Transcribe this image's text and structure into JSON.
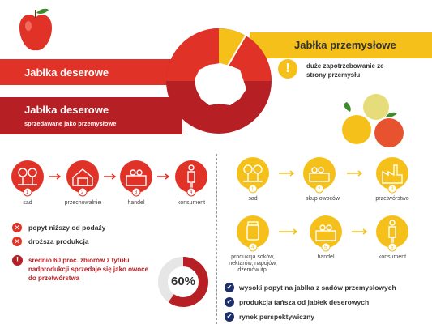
{
  "colors": {
    "red": "#e03226",
    "dark_red": "#b61f24",
    "yellow": "#f6c01a",
    "navy": "#1c2f6b",
    "gray": "#e6e6e6"
  },
  "left": {
    "banner1": "Jabłka deserowe",
    "banner2_title": "Jabłka deserowe",
    "banner2_sub": "sprzedawane jako przemysłowe",
    "flow": [
      {
        "num": "1",
        "label": "sad",
        "icon": "tree-icon"
      },
      {
        "num": "2",
        "label": "przechowalnie",
        "icon": "warehouse-icon"
      },
      {
        "num": "3",
        "label": "handel",
        "icon": "market-stall-icon"
      },
      {
        "num": "4",
        "label": "konsument",
        "icon": "person-icon"
      }
    ],
    "issues": [
      "popyt niższy od podaży",
      "droższa produkcja"
    ],
    "note": "średnio 60 proc. zbiorów z tytułu nadprodukcji sprzedaje się jako owoce do przetwórstwa",
    "percent": "60%",
    "percent_value": 0.6
  },
  "right": {
    "banner": "Jabłka przemysłowe",
    "demand_note": "duże zapotrzebowanie ze strony przemysłu",
    "flow_top": [
      {
        "num": "1",
        "label": "sad",
        "icon": "tree-icon"
      },
      {
        "num": "2",
        "label": "skup owoców",
        "icon": "crate-icon"
      },
      {
        "num": "3",
        "label": "przetwórstwo",
        "icon": "factory-icon"
      }
    ],
    "flow_bottom": [
      {
        "num": "4",
        "label": "produkcja soków, nektarów, napojów, dżemów itp.",
        "icon": "jar-icon"
      },
      {
        "num": "5",
        "label": "handel",
        "icon": "market-stall-icon"
      },
      {
        "num": "6",
        "label": "konsument",
        "icon": "person-icon"
      }
    ],
    "advantages": [
      "wysoki popyt na jabłka z sadów przemysłowych",
      "produkcja tańsza od jabłek deserowych",
      "rynek perspektywiczny"
    ]
  }
}
